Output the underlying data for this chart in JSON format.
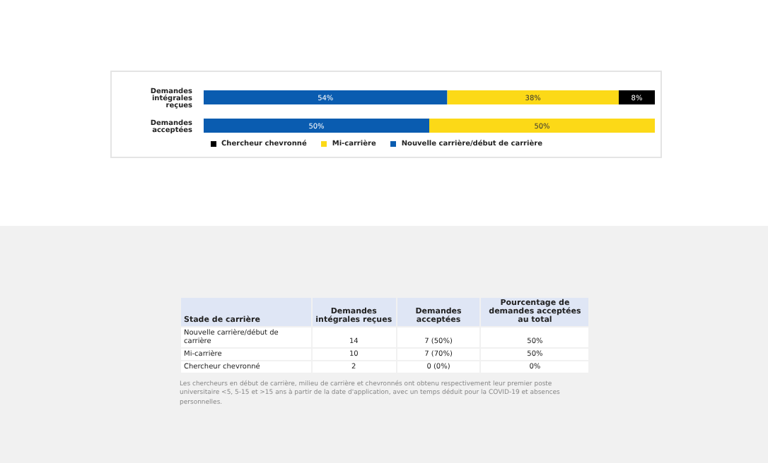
{
  "chart_data": [
    {
      "type": "bar",
      "orientation": "horizontal",
      "stacked": true,
      "categories": [
        "Demandes intégrales reçues",
        "Demandes acceptées"
      ],
      "xlim": [
        0,
        100
      ],
      "tick_labels": "y",
      "legend": "bottom",
      "grid": false,
      "series": [
        {
          "name": "Nouvelle carrière/début de carrière",
          "color": "#0a5cb0",
          "values": [
            54,
            50
          ],
          "value_labels": [
            "54%",
            "50%"
          ]
        },
        {
          "name": "Mi-carrière",
          "color": "#fcd917",
          "values": [
            38,
            50
          ],
          "value_labels": [
            "38%",
            "50%"
          ]
        },
        {
          "name": "Chercheur chevronné",
          "color": "#000000",
          "values": [
            8,
            0
          ],
          "value_labels": [
            "8%",
            null
          ]
        }
      ]
    },
    {
      "type": "other",
      "annotations": [
        "Stade de carrière",
        "Demandes intégrales reçues",
        "Demandes acceptées",
        "Pourcentage de demandes acceptées au total",
        "Nouvelle carrière/début de carrière",
        "14",
        "7 (50%)",
        "50%",
        "Mi-carrière",
        "10",
        "7 (70%)",
        "50%",
        "Chercheur chevronné",
        "2",
        "0 (0%)",
        "0%",
        "Les chercheurs en début de carrière, milieu de carrière et chevronnés ont obtenu respectivement leur premier poste universitaire <5, 5-15 et >15 ans à partir de la date d'application, avec un temps déduit pour la COVID-19 et absences personnelles."
      ]
    }
  ]
}
